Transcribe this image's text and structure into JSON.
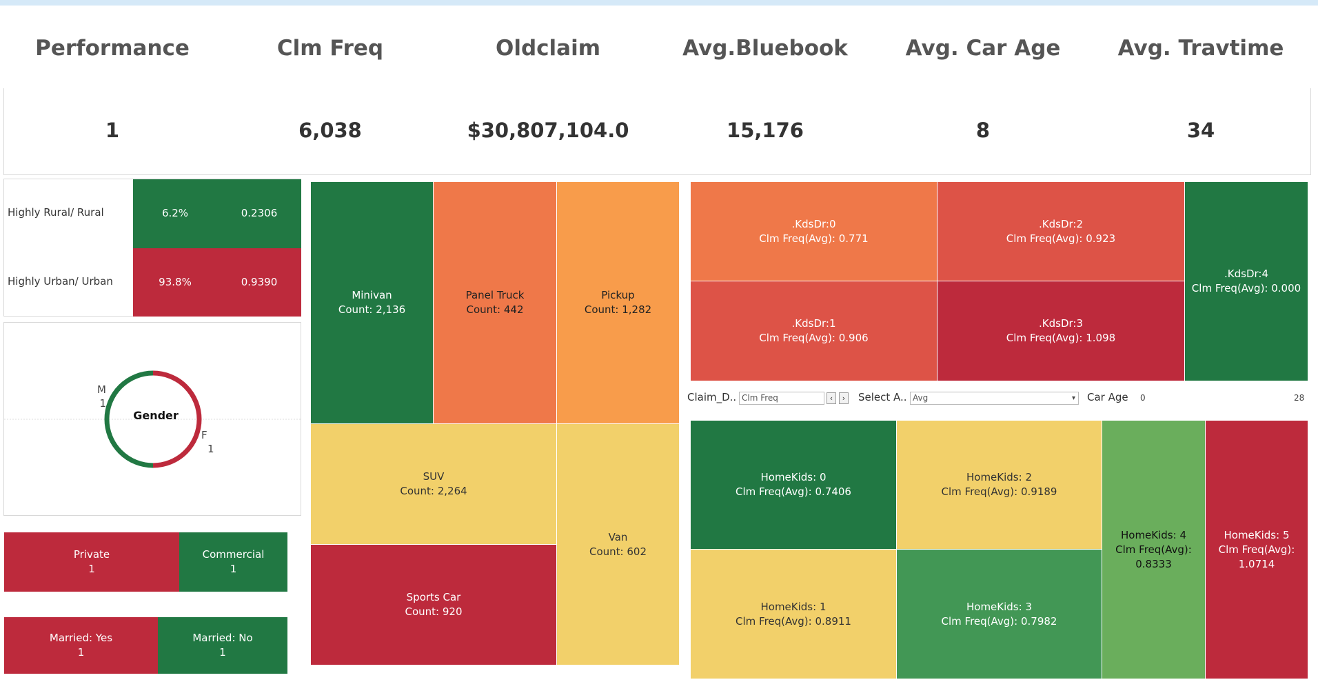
{
  "kpis": [
    {
      "title": "Performance",
      "value": "1"
    },
    {
      "title": "Clm Freq",
      "value": "6,038"
    },
    {
      "title": "Oldclaim",
      "value": "$30,807,104.0"
    },
    {
      "title": "Avg.Bluebook",
      "value": "15,176"
    },
    {
      "title": "Avg. Car Age",
      "value": "8"
    },
    {
      "title": "Avg. Travtime",
      "value": "34"
    }
  ],
  "region": {
    "rows": [
      {
        "label": "Highly Rural/ Rural",
        "pct": "6.2%",
        "freq": "0.2306",
        "color": "#217843"
      },
      {
        "label": "Highly Urban/ Urban",
        "pct": "93.8%",
        "freq": "0.9390",
        "color": "#bd2a3c"
      }
    ]
  },
  "gender": {
    "center_label": "Gender",
    "m_label": "M",
    "m_value": "1",
    "f_label": "F",
    "f_value": "1",
    "m_share": 0.5,
    "colors": {
      "m": "#217843",
      "f": "#bd2a3c"
    }
  },
  "car_use": [
    {
      "label": "Private",
      "value": "1",
      "color": "#bd2a3c"
    },
    {
      "label": "Commercial",
      "value": "1",
      "color": "#217843"
    }
  ],
  "married": [
    {
      "label": "Married: Yes",
      "value": "1",
      "color": "#bd2a3c"
    },
    {
      "label": "Married: No",
      "value": "1",
      "color": "#217843"
    }
  ],
  "car_type": [
    {
      "name": "Minivan",
      "count": "Count: 2,136"
    },
    {
      "name": "Panel Truck",
      "count": "Count: 442"
    },
    {
      "name": "Pickup",
      "count": "Count: 1,282"
    },
    {
      "name": "SUV",
      "count": "Count: 2,264"
    },
    {
      "name": "Van",
      "count": "Count: 602"
    },
    {
      "name": "Sports Car",
      "count": "Count: 920"
    }
  ],
  "kidsdriv": [
    {
      "name": ".KdsDr:0",
      "freq": "Clm Freq(Avg): 0.771"
    },
    {
      "name": ".KdsDr:2",
      "freq": "Clm Freq(Avg): 0.923"
    },
    {
      "name": ".KdsDr:4",
      "freq": "Clm Freq(Avg): 0.000"
    },
    {
      "name": ".KdsDr:1",
      "freq": "Clm Freq(Avg): 0.906"
    },
    {
      "name": ".KdsDr:3",
      "freq": "Clm Freq(Avg): 1.098"
    }
  ],
  "filters": {
    "claim_label": "Claim_D..",
    "claim_value": "Clm Freq",
    "select_label": "Select A..",
    "select_value": "Avg",
    "car_age_label": "Car Age",
    "car_age_min": "0",
    "car_age_max": "28",
    "prev": "‹",
    "next": "›",
    "dropdown": "▾"
  },
  "homekids": [
    {
      "name": "HomeKids: 0",
      "freq": "Clm Freq(Avg): 0.7406"
    },
    {
      "name": "HomeKids: 2",
      "freq": "Clm Freq(Avg): 0.9189"
    },
    {
      "name": "HomeKids: 4",
      "freq_a": "Clm Freq(Avg):",
      "freq_b": "0.8333"
    },
    {
      "name": "HomeKids: 5",
      "freq_a": "Clm Freq(Avg):",
      "freq_b": "1.0714"
    },
    {
      "name": "HomeKids: 1",
      "freq": "Clm Freq(Avg): 0.8911"
    },
    {
      "name": "HomeKids: 3",
      "freq": "Clm Freq(Avg): 0.7982"
    }
  ]
}
